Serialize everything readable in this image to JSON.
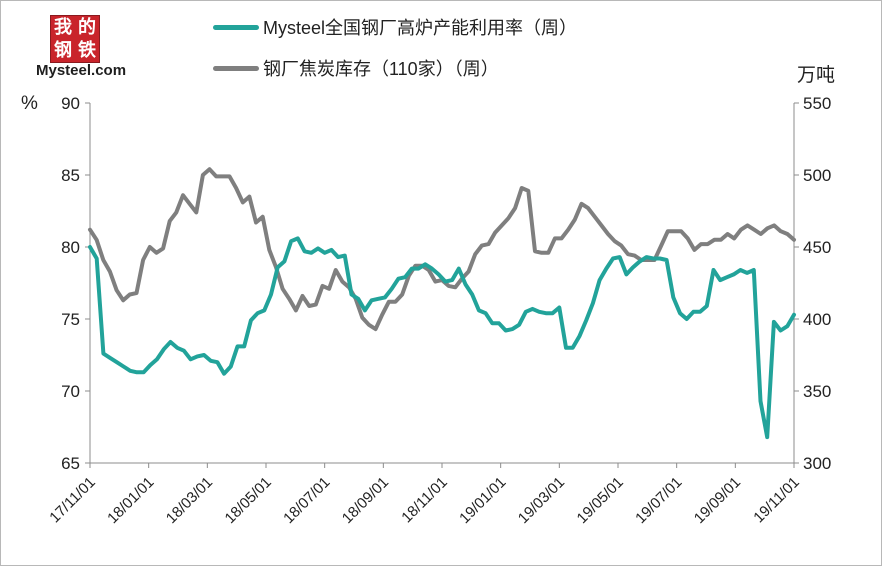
{
  "logo": {
    "chars": [
      "我",
      "的",
      "钢",
      "铁"
    ],
    "wordmark": "Mysteel.com"
  },
  "colors": {
    "series1": "#22a39a",
    "series2": "#7f7f7f",
    "axis": "#8c8c8c"
  },
  "chart_data": {
    "type": "line",
    "title": "",
    "grid": false,
    "legend_position": "top",
    "y_left_unit": "%",
    "y_right_unit": "万吨",
    "y_left": {
      "ylim": [
        65,
        90
      ],
      "ticks": [
        "65",
        "70",
        "75",
        "80",
        "85",
        "90"
      ]
    },
    "y_right": {
      "ylim": [
        300,
        550
      ],
      "ticks": [
        "300",
        "350",
        "400",
        "450",
        "500",
        "550"
      ]
    },
    "x_ticks": [
      "17/11/01",
      "18/01/01",
      "18/03/01",
      "18/05/01",
      "18/07/01",
      "18/09/01",
      "18/11/01",
      "19/01/01",
      "19/03/01",
      "19/05/01",
      "19/07/01",
      "19/09/01",
      "19/11/01"
    ],
    "x_start_label": "17/11/01",
    "x_end_label": "19/11/01",
    "series": [
      {
        "name": "Mysteel全国钢厂高炉产能利用率（周）",
        "axis": "left",
        "values": [
          80.0,
          79.2,
          72.6,
          72.3,
          72.0,
          71.7,
          71.4,
          71.3,
          71.3,
          71.8,
          72.2,
          72.9,
          73.4,
          73.0,
          72.8,
          72.2,
          72.4,
          72.5,
          72.1,
          72.0,
          71.2,
          71.7,
          73.1,
          73.1,
          74.9,
          75.4,
          75.6,
          76.7,
          78.6,
          79.0,
          80.4,
          80.6,
          79.7,
          79.6,
          79.9,
          79.6,
          79.8,
          79.3,
          79.4,
          76.7,
          76.4,
          75.6,
          76.3,
          76.4,
          76.5,
          77.1,
          77.8,
          77.9,
          78.5,
          78.5,
          78.8,
          78.5,
          78.1,
          77.6,
          77.7,
          78.5,
          77.4,
          76.7,
          75.6,
          75.4,
          74.7,
          74.7,
          74.2,
          74.3,
          74.6,
          75.5,
          75.7,
          75.5,
          75.4,
          75.4,
          75.8,
          73.0,
          73.0,
          73.8,
          74.9,
          76.1,
          77.7,
          78.5,
          79.2,
          79.3,
          78.1,
          78.6,
          79.0,
          79.3,
          79.2,
          79.2,
          79.1,
          76.5,
          75.4,
          75.0,
          75.5,
          75.5,
          75.9,
          78.4,
          77.7,
          77.9,
          78.1,
          78.4,
          78.2,
          78.4,
          69.3,
          66.8,
          74.8,
          74.2,
          74.5,
          75.3
        ]
      },
      {
        "name": "钢厂焦炭库存（110家）（周）",
        "axis": "right",
        "values": [
          462,
          455,
          441,
          433,
          420,
          413,
          417,
          418,
          441,
          450,
          446,
          449,
          468,
          474,
          486,
          480,
          474,
          500,
          504,
          499,
          499,
          499,
          491,
          481,
          485,
          467,
          471,
          448,
          436,
          421,
          414,
          406,
          416,
          409,
          410,
          423,
          421,
          434,
          426,
          422,
          414,
          401,
          396,
          393,
          403,
          412,
          412,
          417,
          430,
          437,
          437,
          434,
          426,
          427,
          423,
          422,
          428,
          433,
          445,
          451,
          452,
          460,
          465,
          470,
          477,
          491,
          489,
          447,
          446,
          446,
          456,
          456,
          462,
          469,
          480,
          477,
          471,
          465,
          459,
          454,
          451,
          445,
          444,
          441,
          441,
          441,
          451,
          461,
          461,
          461,
          456,
          448,
          452,
          452,
          455,
          455,
          459,
          456,
          462,
          465,
          462,
          459,
          463,
          465,
          461,
          459,
          455
        ]
      }
    ]
  }
}
